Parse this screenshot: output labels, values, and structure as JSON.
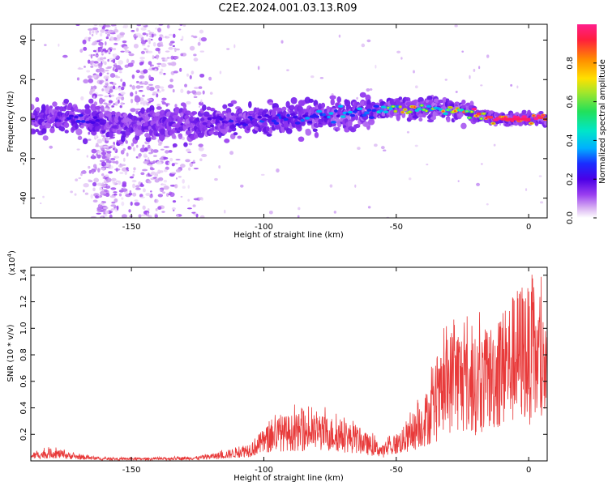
{
  "figure": {
    "title": "C2E2.2024.001.03.13.R09"
  },
  "colors": {
    "snr_line": "#e83a3a",
    "colormap": [
      "#ffffff",
      "#d9b3f2",
      "#9a3ff0",
      "#4b00e6",
      "#1a2cff",
      "#00b0ff",
      "#00e6c8",
      "#22e05a",
      "#a6e62a",
      "#ffe000",
      "#ff8a00",
      "#ff1e3c",
      "#ff1e8c"
    ]
  },
  "chart_data": [
    {
      "type": "heatmap",
      "xlabel": "Height of straight line (km)",
      "ylabel": "Frequency (Hz)",
      "xlim": [
        -188,
        7
      ],
      "ylim": [
        -50,
        48
      ],
      "x_ticks": [
        -150,
        -100,
        -50,
        0
      ],
      "x_tick_labels": [
        "-150",
        "-100",
        "-50",
        "0"
      ],
      "y_ticks": [
        -40,
        -20,
        0,
        20,
        40
      ],
      "y_tick_labels": [
        "-40",
        "-20",
        "0",
        "20",
        "40"
      ],
      "colorbar": {
        "label": "Normalized spectral amplitude",
        "range": [
          0,
          1
        ],
        "ticks": [
          0.0,
          0.2,
          0.4,
          0.6,
          0.8
        ],
        "tick_labels": [
          "0.0",
          "0.2",
          "0.4",
          "0.6",
          "0.8"
        ]
      },
      "ridge": {
        "description_points": [
          {
            "x": -188,
            "freq": 0,
            "amp": 0.15
          },
          {
            "x": -170,
            "freq": 0,
            "amp": 0.25
          },
          {
            "x": -150,
            "freq": -3,
            "amp": 0.12
          },
          {
            "x": -130,
            "freq": -2,
            "amp": 0.15
          },
          {
            "x": -110,
            "freq": -1,
            "amp": 0.25
          },
          {
            "x": -90,
            "freq": 0,
            "amp": 0.3
          },
          {
            "x": -70,
            "freq": 2,
            "amp": 0.35
          },
          {
            "x": -55,
            "freq": 5,
            "amp": 0.4
          },
          {
            "x": -45,
            "freq": 5,
            "amp": 0.6
          },
          {
            "x": -35,
            "freq": 5,
            "amp": 0.55
          },
          {
            "x": -25,
            "freq": 4,
            "amp": 0.7
          },
          {
            "x": -15,
            "freq": 1,
            "amp": 0.85
          },
          {
            "x": -5,
            "freq": 0,
            "amp": 0.95
          },
          {
            "x": 5,
            "freq": 0,
            "amp": 0.9
          }
        ]
      },
      "scatter_band": {
        "x_from": -165,
        "x_to": -122,
        "amp": 0.15
      }
    },
    {
      "type": "line",
      "xlabel": "Height of straight line (km)",
      "ylabel": "SNR (10 * v/v)",
      "y_multiplier_label": "(x10",
      "y_multiplier_exp": "4",
      "xlim": [
        -188,
        7
      ],
      "ylim": [
        0,
        1.46
      ],
      "x_ticks": [
        -150,
        -100,
        -50,
        0
      ],
      "x_tick_labels": [
        "-150",
        "-100",
        "-50",
        "0"
      ],
      "y_ticks": [
        0.2,
        0.4,
        0.6,
        0.8,
        1.0,
        1.2,
        1.4
      ],
      "y_tick_labels": [
        "0.2",
        "0.4",
        "0.6",
        "0.8",
        "1.0",
        "1.2",
        "1.4"
      ],
      "envelope": [
        {
          "x": -188,
          "y": 0.05
        },
        {
          "x": -180,
          "y": 0.08
        },
        {
          "x": -170,
          "y": 0.04
        },
        {
          "x": -160,
          "y": 0.02
        },
        {
          "x": -140,
          "y": 0.02
        },
        {
          "x": -125,
          "y": 0.03
        },
        {
          "x": -115,
          "y": 0.06
        },
        {
          "x": -105,
          "y": 0.12
        },
        {
          "x": -95,
          "y": 0.28
        },
        {
          "x": -85,
          "y": 0.3
        },
        {
          "x": -75,
          "y": 0.28
        },
        {
          "x": -65,
          "y": 0.22
        },
        {
          "x": -55,
          "y": 0.1
        },
        {
          "x": -45,
          "y": 0.25
        },
        {
          "x": -35,
          "y": 0.55
        },
        {
          "x": -28,
          "y": 0.9
        },
        {
          "x": -22,
          "y": 0.75
        },
        {
          "x": -15,
          "y": 0.85
        },
        {
          "x": -8,
          "y": 1.0
        },
        {
          "x": -2,
          "y": 1.15
        },
        {
          "x": 5,
          "y": 0.95
        }
      ]
    }
  ]
}
